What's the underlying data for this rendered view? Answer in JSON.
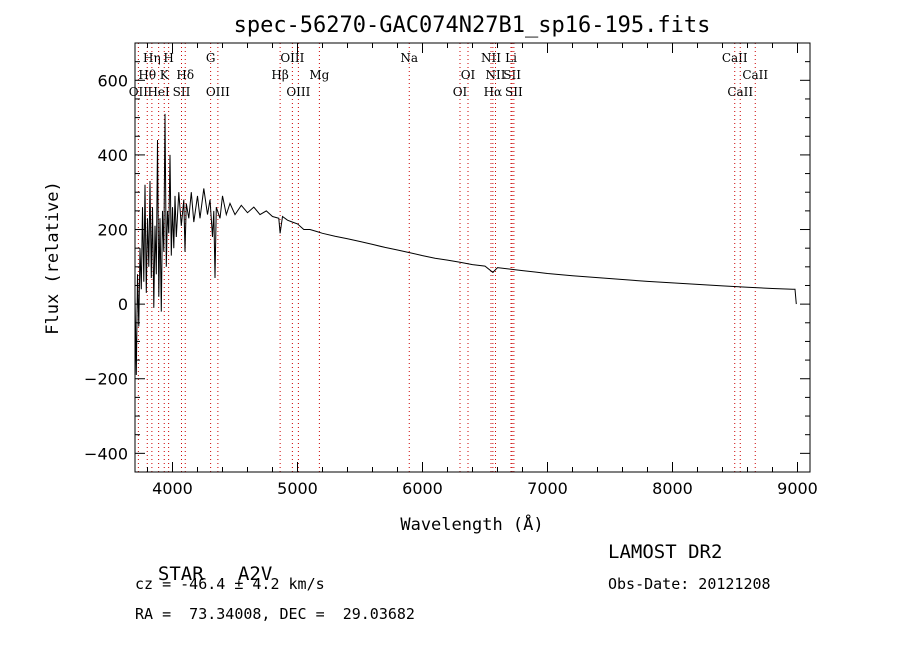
{
  "chart_data": {
    "type": "line",
    "title": "spec-56270-GAC074N27B1_sp16-195.fits",
    "xlabel": "Wavelength (Å)",
    "ylabel": "Flux (relative)",
    "xlim": [
      3700,
      9100
    ],
    "ylim": [
      -450,
      700
    ],
    "xticks": [
      4000,
      5000,
      6000,
      7000,
      8000,
      9000
    ],
    "yticks": [
      -400,
      -200,
      0,
      200,
      400,
      600
    ],
    "x_minor_step": 200,
    "y_minor_step": 50,
    "grid": false,
    "series": [
      {
        "points": [
          [
            3700,
            20
          ],
          [
            3710,
            -190
          ],
          [
            3720,
            80
          ],
          [
            3730,
            -60
          ],
          [
            3740,
            150
          ],
          [
            3750,
            40
          ],
          [
            3760,
            260
          ],
          [
            3770,
            60
          ],
          [
            3780,
            320
          ],
          [
            3790,
            30
          ],
          [
            3800,
            230
          ],
          [
            3810,
            100
          ],
          [
            3820,
            330
          ],
          [
            3830,
            70
          ],
          [
            3840,
            260
          ],
          [
            3850,
            -10
          ],
          [
            3860,
            210
          ],
          [
            3870,
            80
          ],
          [
            3880,
            440
          ],
          [
            3890,
            20
          ],
          [
            3900,
            230
          ],
          [
            3910,
            -20
          ],
          [
            3920,
            250
          ],
          [
            3930,
            140
          ],
          [
            3940,
            510
          ],
          [
            3950,
            100
          ],
          [
            3960,
            250
          ],
          [
            3970,
            190
          ],
          [
            3980,
            400
          ],
          [
            3990,
            130
          ],
          [
            4000,
            260
          ],
          [
            4010,
            150
          ],
          [
            4020,
            290
          ],
          [
            4030,
            180
          ],
          [
            4050,
            300
          ],
          [
            4070,
            210
          ],
          [
            4090,
            280
          ],
          [
            4100,
            140
          ],
          [
            4110,
            270
          ],
          [
            4130,
            230
          ],
          [
            4150,
            300
          ],
          [
            4170,
            220
          ],
          [
            4200,
            290
          ],
          [
            4220,
            230
          ],
          [
            4250,
            310
          ],
          [
            4280,
            240
          ],
          [
            4300,
            280
          ],
          [
            4320,
            180
          ],
          [
            4330,
            250
          ],
          [
            4340,
            70
          ],
          [
            4350,
            260
          ],
          [
            4380,
            230
          ],
          [
            4400,
            290
          ],
          [
            4430,
            240
          ],
          [
            4460,
            270
          ],
          [
            4500,
            240
          ],
          [
            4550,
            265
          ],
          [
            4600,
            245
          ],
          [
            4650,
            260
          ],
          [
            4700,
            240
          ],
          [
            4750,
            250
          ],
          [
            4800,
            235
          ],
          [
            4850,
            230
          ],
          [
            4861,
            190
          ],
          [
            4880,
            235
          ],
          [
            4920,
            225
          ],
          [
            4960,
            220
          ],
          [
            5000,
            215
          ],
          [
            5050,
            200
          ],
          [
            5100,
            200
          ],
          [
            5150,
            195
          ],
          [
            5200,
            190
          ],
          [
            5300,
            182
          ],
          [
            5400,
            175
          ],
          [
            5500,
            168
          ],
          [
            5600,
            160
          ],
          [
            5700,
            152
          ],
          [
            5800,
            145
          ],
          [
            5900,
            138
          ],
          [
            6000,
            130
          ],
          [
            6100,
            123
          ],
          [
            6200,
            118
          ],
          [
            6300,
            112
          ],
          [
            6400,
            106
          ],
          [
            6500,
            102
          ],
          [
            6563,
            85
          ],
          [
            6600,
            98
          ],
          [
            6700,
            94
          ],
          [
            6800,
            90
          ],
          [
            6900,
            86
          ],
          [
            7000,
            82
          ],
          [
            7200,
            76
          ],
          [
            7400,
            71
          ],
          [
            7600,
            66
          ],
          [
            7800,
            61
          ],
          [
            8000,
            57
          ],
          [
            8200,
            53
          ],
          [
            8400,
            49
          ],
          [
            8600,
            45
          ],
          [
            8800,
            42
          ],
          [
            8960,
            40
          ],
          [
            8980,
            40
          ],
          [
            8990,
            0
          ]
        ]
      }
    ],
    "lines": [
      {
        "name": "OII",
        "x": 3727,
        "row": 3
      },
      {
        "name": "Hη",
        "x": 3835,
        "row": 1
      },
      {
        "name": "Hθ",
        "x": 3798,
        "row": 2
      },
      {
        "name": "HeI",
        "x": 3889,
        "row": 3
      },
      {
        "name": "K",
        "x": 3934,
        "row": 2
      },
      {
        "name": "H",
        "x": 3969,
        "row": 1
      },
      {
        "name": "SII",
        "x": 4072,
        "row": 3
      },
      {
        "name": "Hδ",
        "x": 4102,
        "row": 2
      },
      {
        "name": "G",
        "x": 4305,
        "row": 1
      },
      {
        "name": "OIII",
        "x": 4363,
        "row": 3
      },
      {
        "name": "Hβ",
        "x": 4861,
        "row": 2
      },
      {
        "name": "OIII",
        "x": 4959,
        "row": 1
      },
      {
        "name": "OIII",
        "x": 5007,
        "row": 3
      },
      {
        "name": "Mg",
        "x": 5175,
        "row": 2
      },
      {
        "name": "Na",
        "x": 5894,
        "row": 1
      },
      {
        "name": "OI",
        "x": 6300,
        "row": 3
      },
      {
        "name": "OI",
        "x": 6364,
        "row": 2
      },
      {
        "name": "NII",
        "x": 6548,
        "row": 1
      },
      {
        "name": "NII",
        "x": 6584,
        "row": 2
      },
      {
        "name": "Hα",
        "x": 6563,
        "row": 3
      },
      {
        "name": "Li",
        "x": 6708,
        "row": 1
      },
      {
        "name": "SII",
        "x": 6717,
        "row": 2
      },
      {
        "name": "SII",
        "x": 6731,
        "row": 3
      },
      {
        "name": "CaII",
        "x": 8498,
        "row": 1
      },
      {
        "name": "CaII",
        "x": 8542,
        "row": 3
      },
      {
        "name": "CaII",
        "x": 8662,
        "row": 2
      }
    ]
  },
  "info": {
    "object_class": "STAR",
    "subclass": "A2V",
    "survey": "LAMOST DR2",
    "cz": "cz = -46.4 ± 4.2 km/s",
    "obs_date": "Obs-Date: 20121208",
    "coords": "RA =  73.34008, DEC =  29.03682"
  },
  "colors": {
    "spectrum": "#000000",
    "line_marker": "#cc0000",
    "axis": "#000000"
  }
}
